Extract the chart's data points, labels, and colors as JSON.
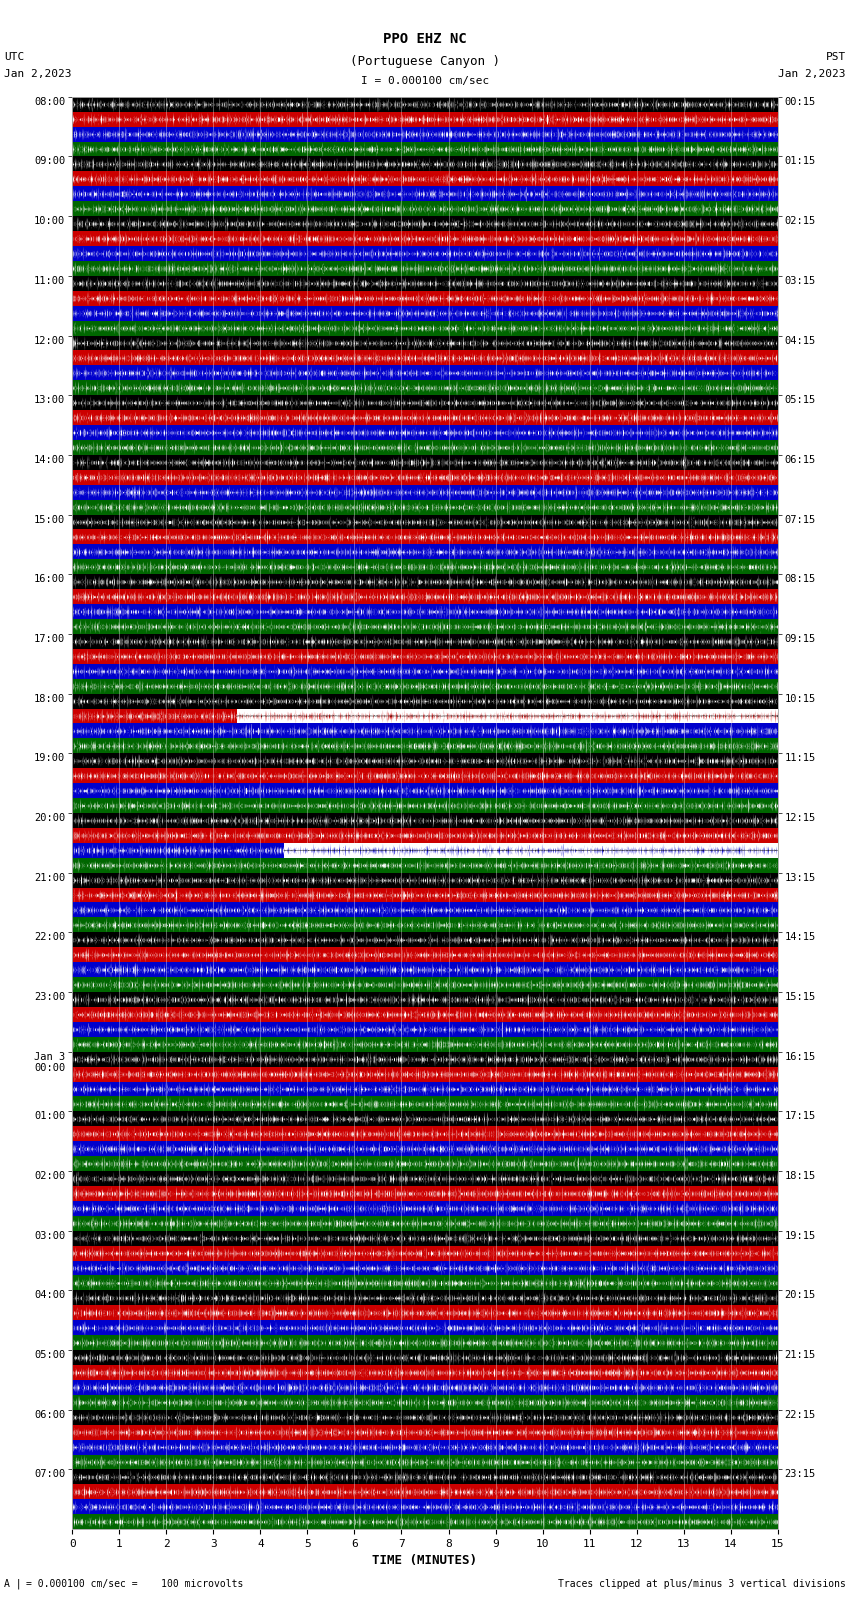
{
  "title_line1": "PPO EHZ NC",
  "title_line2": "(Portuguese Canyon )",
  "title_line3": "I = 0.000100 cm/sec",
  "left_label": "UTC",
  "left_date": "Jan 2,2023",
  "right_label": "PST",
  "right_date": "Jan 2,2023",
  "xlabel": "TIME (MINUTES)",
  "bottom_left_note": "= 0.000100 cm/sec =    100 microvolts",
  "bottom_right_note": "Traces clipped at plus/minus 3 vertical divisions",
  "xlim": [
    0,
    15
  ],
  "utc_labels": [
    "08:00",
    "09:00",
    "10:00",
    "11:00",
    "12:00",
    "13:00",
    "14:00",
    "15:00",
    "16:00",
    "17:00",
    "18:00",
    "19:00",
    "20:00",
    "21:00",
    "22:00",
    "23:00",
    "Jan 3\n00:00",
    "01:00",
    "02:00",
    "03:00",
    "04:00",
    "05:00",
    "06:00",
    "07:00"
  ],
  "pst_labels": [
    "00:15",
    "01:15",
    "02:15",
    "03:15",
    "04:15",
    "05:15",
    "06:15",
    "07:15",
    "08:15",
    "09:15",
    "10:15",
    "11:15",
    "12:15",
    "13:15",
    "14:15",
    "15:15",
    "16:15",
    "17:15",
    "18:15",
    "19:15",
    "20:15",
    "21:15",
    "22:15",
    "23:15"
  ],
  "band_colors": [
    "#000000",
    "#cc0000",
    "#0000cc",
    "#006600"
  ],
  "background_color": "#ffffff",
  "n_rows": 24,
  "n_bands_per_row": 4,
  "fig_width": 8.5,
  "fig_height": 16.13,
  "white_region_row10_xstart": 3.5,
  "white_region_row10_xend": 15.0,
  "white_region_row10_band": 1,
  "white_region_row12_xstart": 4.5,
  "white_region_row12_xend": 14.5,
  "white_region_row12_band": 2
}
